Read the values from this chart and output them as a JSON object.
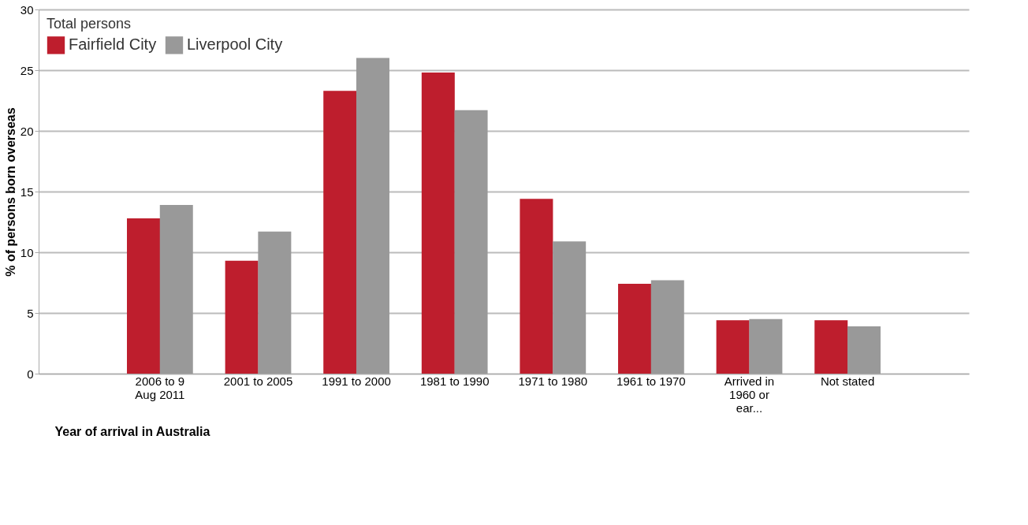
{
  "chart_data": {
    "type": "bar",
    "xlabel": "Year of arrival in Australia",
    "ylabel": "% of persons born overseas",
    "legend_title": "Total persons",
    "legend": "top left",
    "categories": [
      "2006 to 9 Aug 2011",
      "2001 to 2005",
      "1991 to 2000",
      "1981 to 1990",
      "1971 to 1980",
      "1961 to 1970",
      "Arrived in 1960 or ear...",
      "Not stated"
    ],
    "series": [
      {
        "name": "Fairfield City",
        "color": "#be1e2d",
        "values": [
          12.8,
          9.3,
          23.3,
          24.8,
          14.4,
          7.4,
          4.4,
          4.4
        ]
      },
      {
        "name": "Liverpool City",
        "color": "#999999",
        "values": [
          13.9,
          11.7,
          26.0,
          21.7,
          10.9,
          7.7,
          4.5,
          3.9
        ]
      }
    ],
    "ylim": [
      0,
      30
    ],
    "yticks": [
      0,
      5,
      10,
      15,
      20,
      25,
      30
    ],
    "grid": "y"
  }
}
